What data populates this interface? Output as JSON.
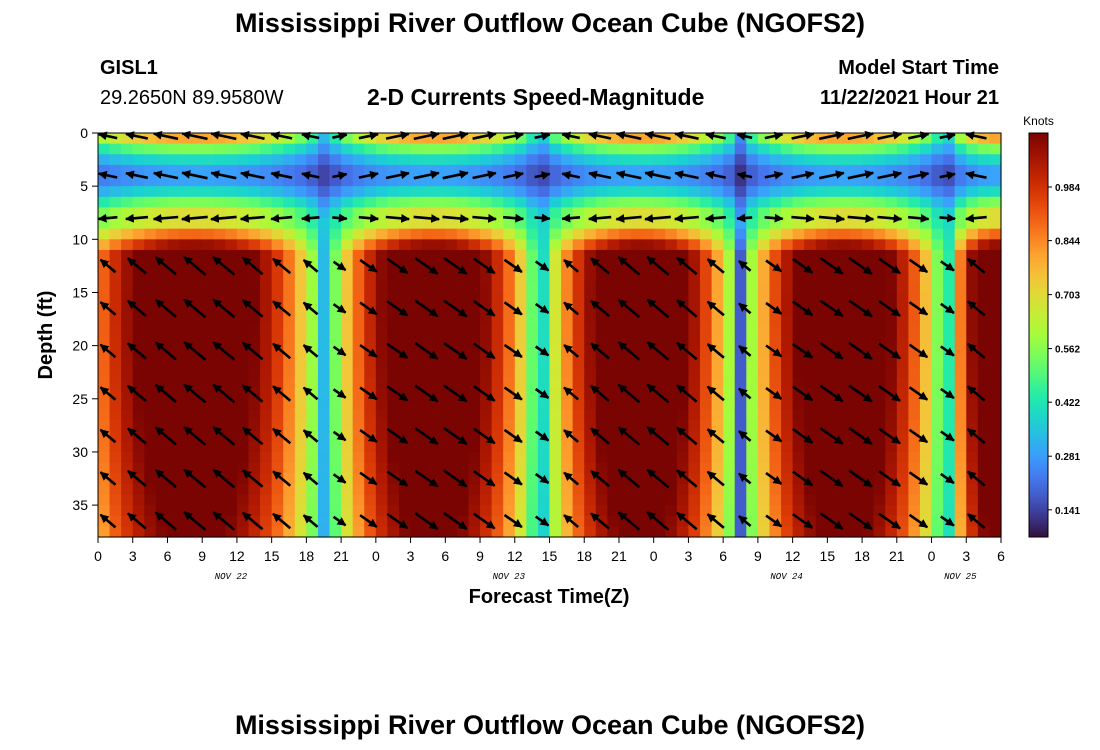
{
  "header": {
    "title": "Mississippi River Outflow Ocean Cube (NGOFS2)",
    "station_id": "GISL1",
    "station_coords": "29.2650N  89.9580W",
    "product": "2-D Currents Speed-Magnitude",
    "model_start_label": "Model Start Time",
    "model_start_value": "11/22/2021 Hour 21"
  },
  "footer": {
    "title": "Mississippi River Outflow Ocean Cube (NGOFS2)"
  },
  "chart_data": {
    "type": "heatmap",
    "xlabel": "Forecast Time(Z)",
    "ylabel": "Depth (ft)",
    "x_range_hours": [
      0,
      78
    ],
    "ylim": [
      0,
      38
    ],
    "y_inverted": true,
    "x_tick_labels": [
      "0",
      "3",
      "6",
      "9",
      "12",
      "15",
      "18",
      "21",
      "0",
      "3",
      "6",
      "9",
      "12",
      "15",
      "18",
      "21",
      "0",
      "3",
      "6",
      "9",
      "12",
      "15",
      "18",
      "21",
      "0",
      "3",
      "6"
    ],
    "y_tick_labels": [
      "0",
      "5",
      "10",
      "15",
      "20",
      "25",
      "30",
      "35"
    ],
    "date_labels": [
      {
        "label": "NOV 22",
        "hour": 12
      },
      {
        "label": "NOV 23",
        "hour": 36
      },
      {
        "label": "NOV 24",
        "hour": 60
      },
      {
        "label": "NOV 25",
        "hour": 75
      }
    ],
    "colorbar": {
      "title": "Knots",
      "range": [
        0.07,
        1.125
      ],
      "tick_labels": [
        "0.984",
        "0.844",
        "0.703",
        "0.562",
        "0.422",
        "0.281",
        "0.141"
      ],
      "colormap": "turbo"
    },
    "tidal_model": {
      "slack_hours": [
        19.7,
        38.2,
        55.5,
        73.3
      ],
      "peak_speed_knots": 1.1,
      "surface_minimum_depth_ft": 4,
      "surface_minimum_speed_knots": 0.25,
      "deep_layer_depth_ft": 11
    },
    "grid": false
  }
}
